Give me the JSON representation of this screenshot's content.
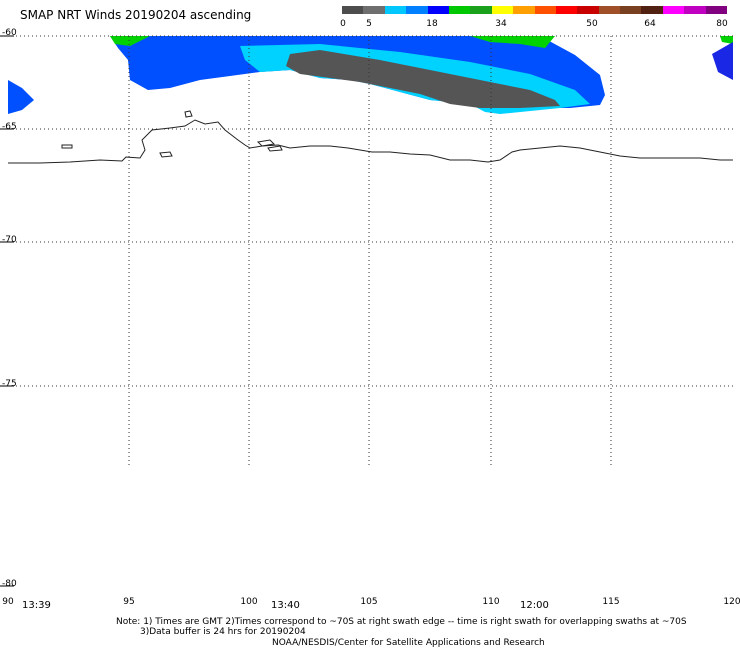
{
  "title": "SMAP NRT Winds 20190204 ascending",
  "colorbar": {
    "labels": [
      "0",
      "5",
      "18",
      "34",
      "50",
      "64",
      "80"
    ],
    "colors": [
      "#4d4d4d",
      "#6e6e6e",
      "#00c8ff",
      "#0080ff",
      "#0000ff",
      "#00c800",
      "#1aa01a",
      "#ffff00",
      "#ffa000",
      "#ff5000",
      "#ff0000",
      "#c80000",
      "#a05028",
      "#784020",
      "#502010",
      "#ff00ff",
      "#c000c0",
      "#800080"
    ]
  },
  "axes": {
    "y_labels": [
      "-60",
      "-65",
      "-70",
      "-75",
      "-80"
    ],
    "x_labels": [
      "90",
      "95",
      "100",
      "105",
      "110",
      "115",
      "120"
    ]
  },
  "times": [
    "13:39",
    "13:40",
    "12:00"
  ],
  "notes": {
    "line1": "Note: 1) Times are GMT 2)Times correspond to ~70S at right swath edge -- time is right swath for overlapping swaths at ~70S",
    "line2": "3)Data buffer is 24 hrs for 20190204",
    "line3": "NOAA/NESDIS/Center for Satellite Applications and Research"
  },
  "wind_colors": {
    "light_blue": "#00d2ff",
    "blue": "#0050ff",
    "dark_blue": "#1a28e6",
    "green": "#00d200",
    "gray": "#555555"
  }
}
